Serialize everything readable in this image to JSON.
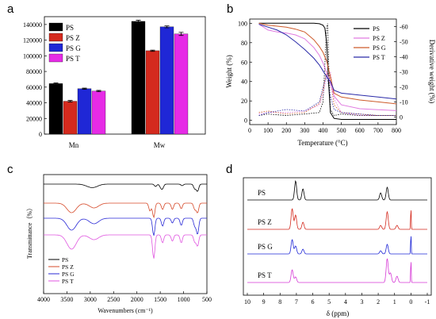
{
  "figure": {
    "panel_letters": [
      "a",
      "b",
      "c",
      "d"
    ]
  },
  "chart_data": [
    {
      "panel": "a",
      "type": "bar",
      "categories": [
        "Mn",
        "Mw"
      ],
      "series": [
        {
          "name": "PS",
          "color": "#000000",
          "values": [
            64500,
            144000
          ],
          "errors": [
            800,
            1500
          ]
        },
        {
          "name": "PS Z",
          "color": "#d42a1e",
          "values": [
            42000,
            106500
          ],
          "errors": [
            1000,
            800
          ]
        },
        {
          "name": "PS G",
          "color": "#1f27d6",
          "values": [
            58000,
            137000
          ],
          "errors": [
            700,
            1200
          ]
        },
        {
          "name": "PS T",
          "color": "#e62be6",
          "values": [
            55000,
            128000
          ],
          "errors": [
            800,
            2000
          ]
        }
      ],
      "ylim": [
        0,
        150000
      ],
      "yticks": [
        "0",
        "20000",
        "40000",
        "60000",
        "80000",
        "100000",
        "120000",
        "140000"
      ],
      "legend": "top-left"
    },
    {
      "panel": "b",
      "type": "line",
      "xlabel": "Temperature (°C)",
      "ylabel": "Weight (%)",
      "ylabel_right": "Derivative weight (%)",
      "xlim": [
        0,
        800
      ],
      "ylim": [
        0,
        100
      ],
      "ylim_right": [
        5,
        -65
      ],
      "xticks": [
        "0",
        "100",
        "200",
        "300",
        "400",
        "500",
        "600",
        "700",
        "800"
      ],
      "yticks": [
        "0",
        "20",
        "40",
        "60",
        "80",
        "100"
      ],
      "yticks_right": [
        "0",
        "-10",
        "-20",
        "-30",
        "-40",
        "-50",
        "-60"
      ],
      "legend": "top-right",
      "series": [
        {
          "name": "PS",
          "color": "#000000",
          "x": [
            50,
            100,
            200,
            300,
            350,
            380,
            400,
            410,
            420,
            430,
            440,
            460,
            500,
            600,
            700,
            800
          ],
          "y": [
            100,
            100,
            100,
            100,
            100,
            99.5,
            98,
            95,
            80,
            40,
            8,
            2,
            1,
            1,
            1,
            1
          ]
        },
        {
          "name": "PS Z",
          "color": "#e07be0",
          "x": [
            50,
            100,
            150,
            200,
            250,
            300,
            350,
            380,
            400,
            420,
            440,
            460,
            500,
            600,
            700,
            800
          ],
          "y": [
            99,
            93,
            91,
            90,
            88,
            84,
            75,
            67,
            59,
            49,
            38,
            25,
            16,
            12,
            11,
            10
          ]
        },
        {
          "name": "PS G",
          "color": "#cd5a2a",
          "x": [
            50,
            100,
            150,
            200,
            250,
            300,
            350,
            380,
            400,
            420,
            440,
            460,
            500,
            600,
            700,
            800
          ],
          "y": [
            100,
            98,
            97,
            96,
            94,
            91,
            83,
            76,
            70,
            61,
            45,
            28,
            24,
            21,
            19,
            17
          ]
        },
        {
          "name": "PS T",
          "color": "#2a2aa8",
          "x": [
            50,
            100,
            150,
            200,
            250,
            300,
            350,
            380,
            400,
            420,
            440,
            460,
            500,
            600,
            700,
            800
          ],
          "y": [
            99,
            96,
            93,
            88,
            81,
            73,
            64,
            57,
            51,
            45,
            40,
            31,
            28,
            26,
            24,
            22
          ]
        }
      ],
      "derivative_series": [
        {
          "name": "PS",
          "color": "#000000",
          "x": [
            50,
            100,
            200,
            300,
            380,
            400,
            410,
            420,
            425,
            430,
            440,
            460,
            500,
            600,
            700,
            800
          ],
          "y": [
            -1,
            -2,
            -1,
            -2,
            -3,
            -10,
            -35,
            -60,
            -62,
            -40,
            -5,
            -1,
            -2,
            -1,
            -1,
            -1
          ]
        },
        {
          "name": "PS Z",
          "color": "#e07be0",
          "x": [
            50,
            100,
            200,
            300,
            380,
            400,
            420,
            440,
            460,
            500,
            600,
            700,
            800
          ],
          "y": [
            -2,
            -3,
            -3,
            -4,
            -8,
            -15,
            -27,
            -30,
            -12,
            -3,
            -1,
            -1,
            -1
          ]
        },
        {
          "name": "PS G",
          "color": "#cd5a2a",
          "x": [
            50,
            100,
            200,
            300,
            380,
            400,
            420,
            440,
            460,
            500,
            600,
            700,
            800
          ],
          "y": [
            -3,
            -4,
            -2,
            -3,
            -9,
            -18,
            -30,
            -25,
            -8,
            -3,
            -2,
            -1,
            -1
          ]
        },
        {
          "name": "PS T",
          "color": "#2a2aa8",
          "x": [
            50,
            100,
            200,
            300,
            380,
            400,
            420,
            440,
            460,
            500,
            600,
            700,
            800
          ],
          "y": [
            -1,
            -3,
            -5,
            -4,
            -10,
            -20,
            -28,
            -14,
            -5,
            -3,
            -2,
            -1,
            -1
          ]
        }
      ]
    },
    {
      "panel": "c",
      "type": "line",
      "xlabel": "Wavenumbers (cm⁻¹)",
      "ylabel": "Transmittance（%）",
      "xlim": [
        4000,
        500
      ],
      "xticks": [
        "4000",
        "3500",
        "3000",
        "2500",
        "2000",
        "1500",
        "1000",
        "500"
      ],
      "legend": "bottom-left",
      "series": [
        {
          "name": "PS",
          "color": "#000000",
          "offset": 0,
          "peaks": [
            {
              "x": 3020,
              "d": 2
            },
            {
              "x": 2920,
              "d": 3
            },
            {
              "x": 1600,
              "d": 3
            },
            {
              "x": 1490,
              "d": 4
            },
            {
              "x": 1450,
              "d": 5
            },
            {
              "x": 1030,
              "d": 2
            },
            {
              "x": 760,
              "d": 6
            },
            {
              "x": 700,
              "d": 9
            }
          ]
        },
        {
          "name": "PS Z",
          "color": "#d64a2a",
          "offset": 1,
          "peaks": [
            {
              "x": 3400,
              "d": 12
            },
            {
              "x": 2920,
              "d": 6
            },
            {
              "x": 1720,
              "d": 10
            },
            {
              "x": 1640,
              "d": 18
            },
            {
              "x": 1450,
              "d": 8
            },
            {
              "x": 1240,
              "d": 8
            },
            {
              "x": 1050,
              "d": 7
            },
            {
              "x": 760,
              "d": 8
            },
            {
              "x": 700,
              "d": 12
            }
          ]
        },
        {
          "name": "PS G",
          "color": "#2a2ad6",
          "offset": 2,
          "peaks": [
            {
              "x": 3400,
              "d": 15
            },
            {
              "x": 2920,
              "d": 7
            },
            {
              "x": 1640,
              "d": 22
            },
            {
              "x": 1450,
              "d": 10
            },
            {
              "x": 1240,
              "d": 6
            },
            {
              "x": 1050,
              "d": 9
            },
            {
              "x": 760,
              "d": 10
            },
            {
              "x": 700,
              "d": 20
            }
          ]
        },
        {
          "name": "PS T",
          "color": "#e056e0",
          "offset": 3,
          "peaks": [
            {
              "x": 3400,
              "d": 18
            },
            {
              "x": 2920,
              "d": 6
            },
            {
              "x": 1640,
              "d": 30
            },
            {
              "x": 1450,
              "d": 10
            },
            {
              "x": 1240,
              "d": 8
            },
            {
              "x": 1050,
              "d": 10
            },
            {
              "x": 760,
              "d": 9
            },
            {
              "x": 700,
              "d": 14
            }
          ]
        }
      ]
    },
    {
      "panel": "d",
      "type": "line",
      "xlabel": "δ (ppm)",
      "xlim": [
        10,
        -1
      ],
      "xticks": [
        "10",
        "9",
        "8",
        "7",
        "6",
        "5",
        "4",
        "3",
        "2",
        "1",
        "0",
        "-1"
      ],
      "series": [
        {
          "name": "PS",
          "color": "#000000",
          "offset": 0,
          "peaks": [
            {
              "x": 7.05,
              "h": 24
            },
            {
              "x": 6.6,
              "h": 14
            },
            {
              "x": 1.85,
              "h": 9
            },
            {
              "x": 1.45,
              "h": 16
            }
          ]
        },
        {
          "name": "PS Z",
          "color": "#d42a1e",
          "offset": 1,
          "peaks": [
            {
              "x": 7.26,
              "h": 26
            },
            {
              "x": 7.05,
              "h": 18
            },
            {
              "x": 6.6,
              "h": 9
            },
            {
              "x": 1.85,
              "h": 5
            },
            {
              "x": 1.45,
              "h": 22
            },
            {
              "x": 0.85,
              "h": 5
            },
            {
              "x": 0,
              "h": 28
            }
          ]
        },
        {
          "name": "PS G",
          "color": "#1f27d6",
          "offset": 2,
          "peaks": [
            {
              "x": 7.26,
              "h": 18
            },
            {
              "x": 7.05,
              "h": 10
            },
            {
              "x": 6.6,
              "h": 6
            },
            {
              "x": 1.85,
              "h": 4
            },
            {
              "x": 1.45,
              "h": 12
            },
            {
              "x": 0,
              "h": 26
            }
          ]
        },
        {
          "name": "PS T",
          "color": "#d63ad6",
          "offset": 3,
          "peaks": [
            {
              "x": 7.26,
              "h": 16
            },
            {
              "x": 7.05,
              "h": 7
            },
            {
              "x": 1.45,
              "h": 30
            },
            {
              "x": 1.25,
              "h": 12
            },
            {
              "x": 0.85,
              "h": 8
            },
            {
              "x": 0,
              "h": 30
            }
          ]
        }
      ]
    }
  ]
}
